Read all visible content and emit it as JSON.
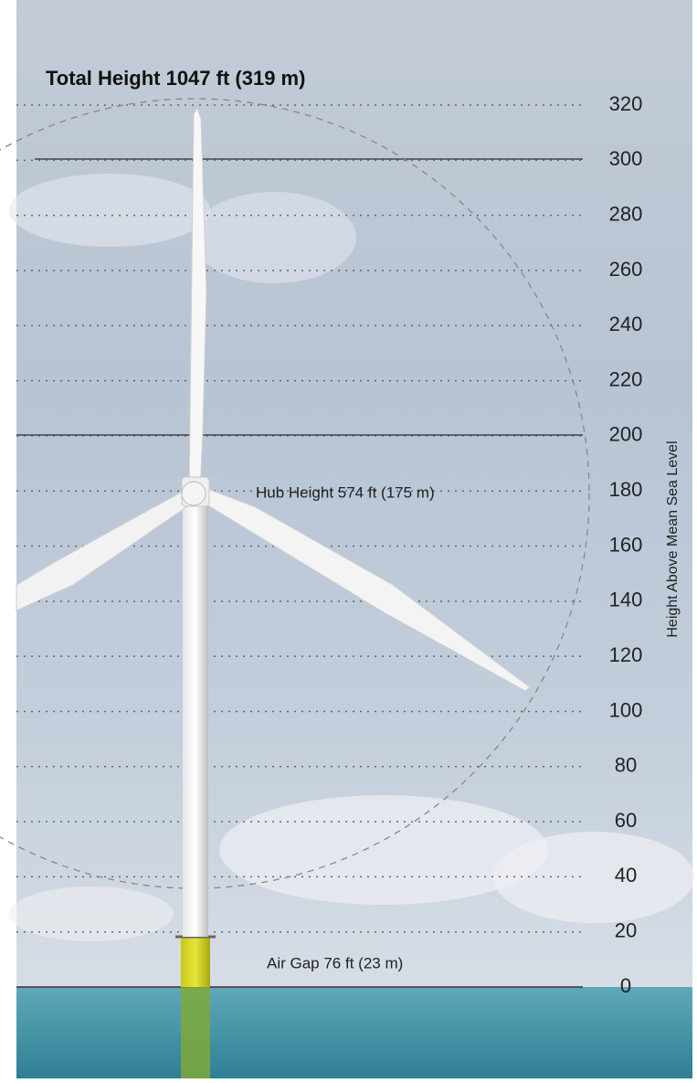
{
  "title": "Total Height 1047 ft (319 m)",
  "hub_label": "Hub Height 574 ft (175 m)",
  "air_gap_label": "Air Gap 76 ft (23 m)",
  "scale": {
    "label": "Height Above Mean Sea Level",
    "ylim": [
      0,
      320
    ],
    "ticks": [
      0,
      20,
      40,
      60,
      80,
      100,
      120,
      140,
      160,
      180,
      200,
      220,
      240,
      260,
      280,
      300,
      320
    ]
  }
}
